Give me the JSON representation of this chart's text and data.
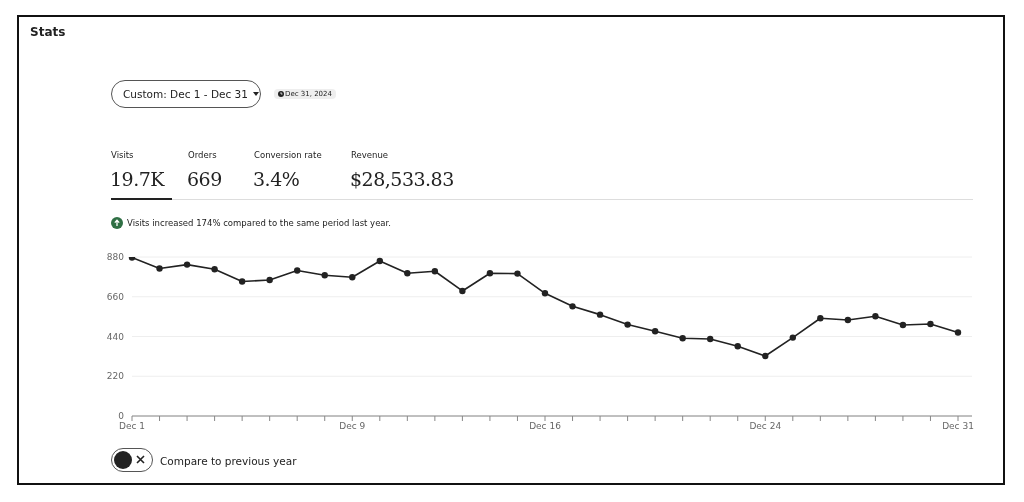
{
  "chart_data": {
    "type": "line",
    "title": "Stats",
    "annotations": [
      "Custom: Dec 1 - Dec 31",
      "Dec 31, 2024",
      "Visits",
      "19.7K",
      "Orders",
      "669",
      "Conversion rate",
      "3.4%",
      "Revenue",
      "$28,533.83",
      "Visits increased 174% compared to the same period last year.",
      "Compare to previous year"
    ],
    "categories": [
      "Dec 1",
      null,
      null,
      null,
      null,
      null,
      null,
      null,
      "Dec 9",
      null,
      null,
      null,
      null,
      null,
      null,
      "Dec 16",
      null,
      null,
      null,
      null,
      null,
      null,
      null,
      "Dec 24",
      null,
      null,
      null,
      null,
      null,
      null,
      "Dec 31"
    ],
    "series": [
      {
        "color": "#222222",
        "values": [
          877,
          816,
          838,
          812,
          744,
          753,
          805,
          779,
          768,
          858,
          790,
          801,
          692,
          790,
          788,
          679,
          607,
          561,
          506,
          469,
          430,
          426,
          386,
          332,
          434,
          541,
          531,
          552,
          504,
          509,
          462
        ]
      }
    ],
    "ylim": [
      0,
      880
    ],
    "yticks": [
      0,
      220,
      440,
      660,
      880
    ],
    "grid": "y",
    "marker": "circle",
    "line_style": "solid"
  }
}
